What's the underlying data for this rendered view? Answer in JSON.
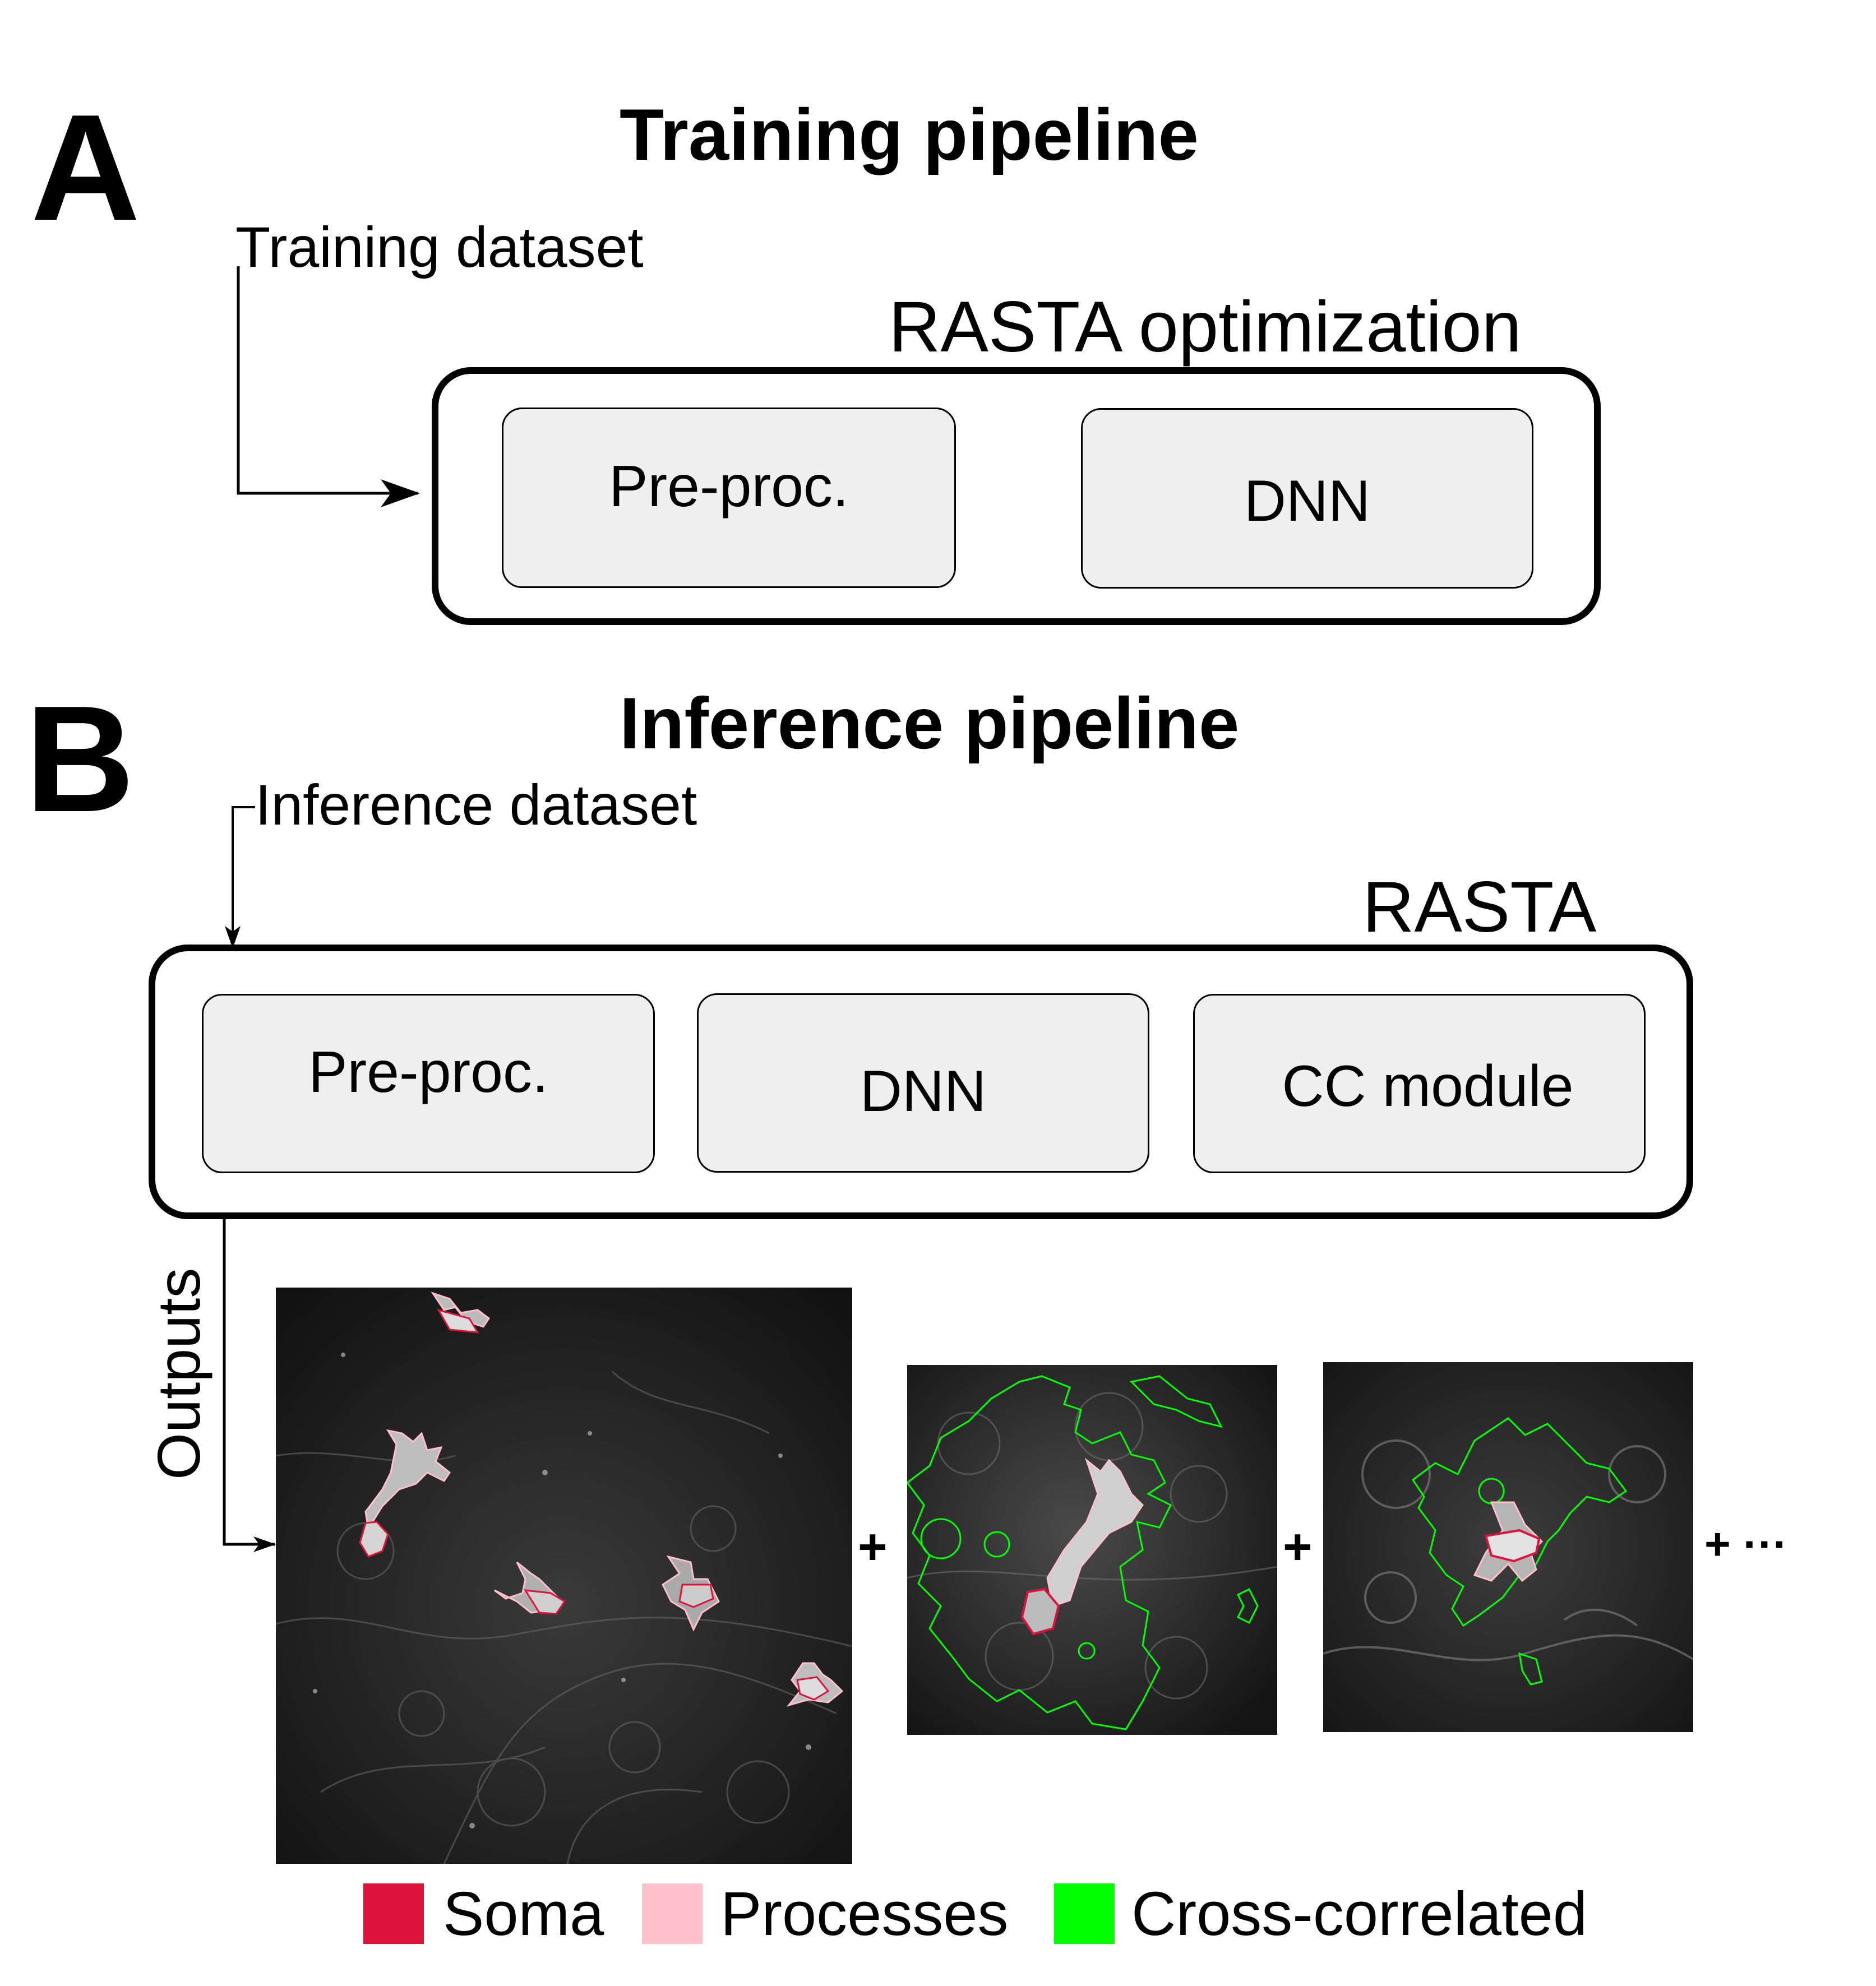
{
  "panel_a": {
    "letter": "A",
    "title": "Training pipeline",
    "input_label": "Training dataset",
    "group_label": "RASTA optimization",
    "stages": [
      "Pre-proc.",
      "DNN"
    ]
  },
  "panel_b": {
    "letter": "B",
    "title": "Inference pipeline",
    "input_label": "Inference dataset",
    "group_label": "RASTA",
    "stages": [
      "Pre-proc.",
      "DNN",
      "CC module"
    ],
    "outputs_label": "Outputs",
    "separators": [
      "+",
      "+",
      "+ ···"
    ]
  },
  "legend": {
    "items": [
      {
        "label": "Soma",
        "color": "#dc143c"
      },
      {
        "label": "Processes",
        "color": "#ffc0cb"
      },
      {
        "label": "Cross-correlated",
        "color": "#00ff00"
      }
    ]
  },
  "colors": {
    "soma": "#dc143c",
    "processes": "#ffc0cb",
    "cross_correlated": "#00ff00",
    "stage_fill": "#efefef"
  }
}
